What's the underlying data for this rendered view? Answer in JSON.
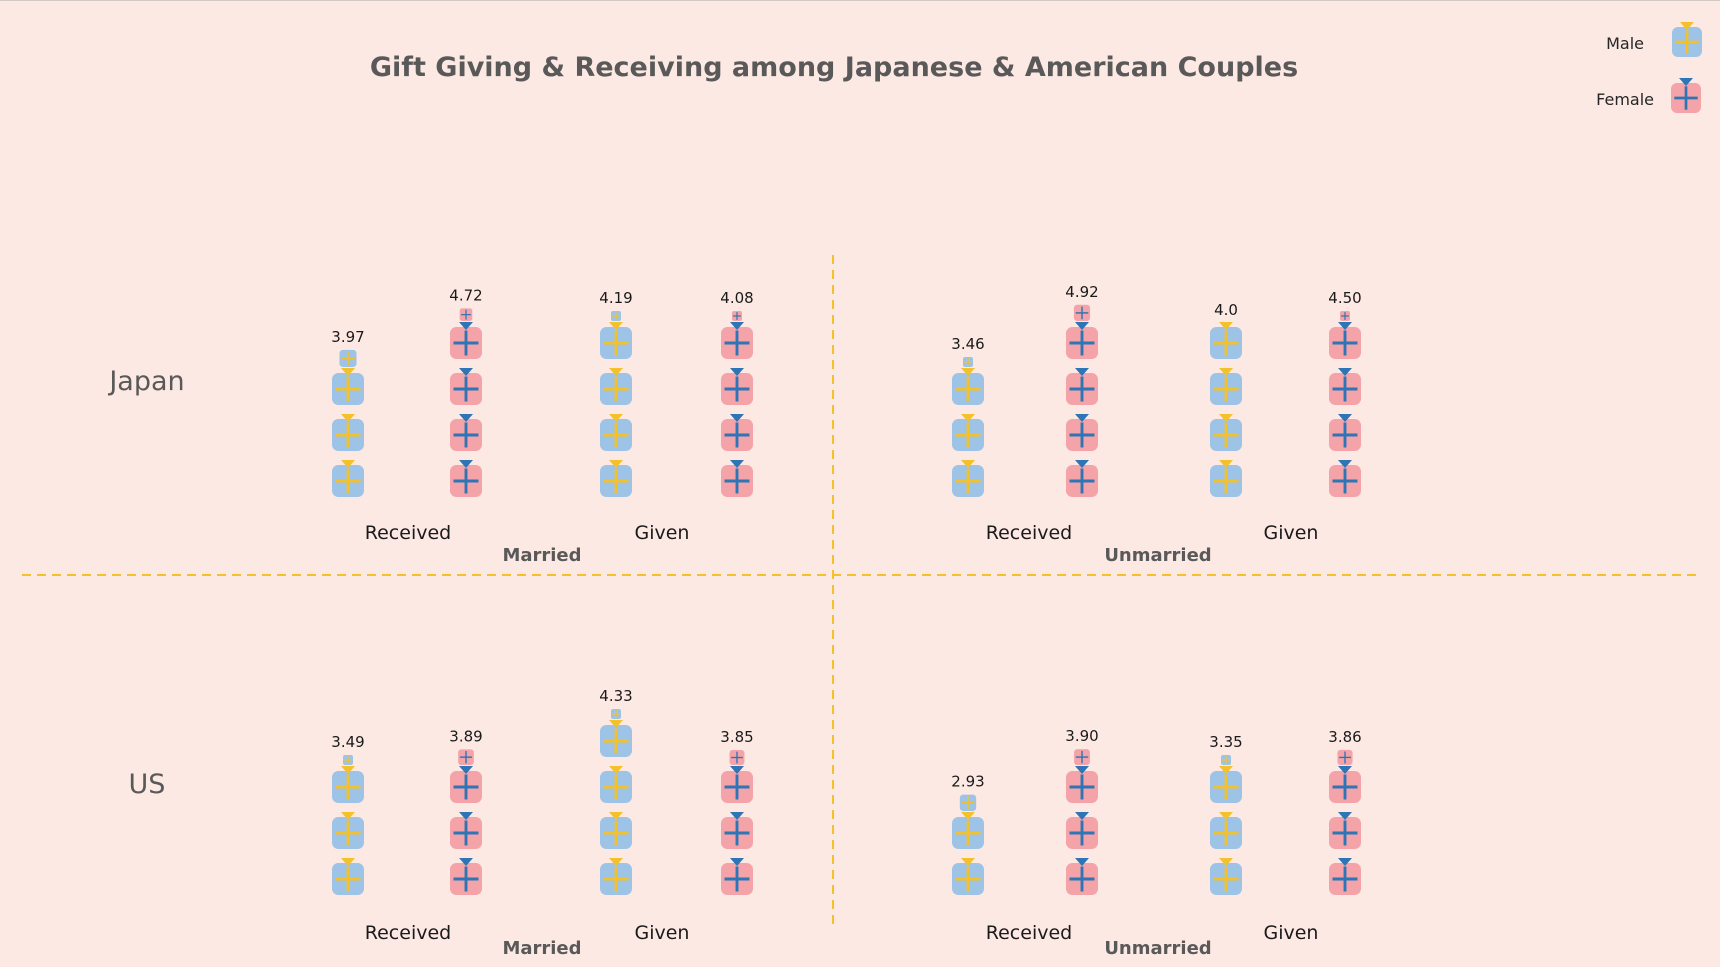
{
  "title": "Gift Giving & Receiving among Japanese & American Couples",
  "legend": {
    "male_label": "Male",
    "female_label": "Female"
  },
  "rows": [
    "Japan",
    "US"
  ],
  "colors": {
    "background": "#fde9e4",
    "male_box": "#9dc3e6",
    "male_ribbon": "#f3c12b",
    "female_box": "#f4a3a8",
    "female_ribbon": "#2e75b6",
    "divider": "#f7c02b",
    "title": "#595959"
  },
  "icons": {
    "male": "gift-box-icon",
    "female": "gift-box-icon"
  },
  "chart_data": {
    "type": "pictograph",
    "unit": "1 gift icon = 1 point",
    "title": "Gift Giving & Receiving among Japanese & American Couples",
    "series": [
      {
        "name": "Male"
      },
      {
        "name": "Female"
      }
    ],
    "panels": [
      {
        "country": "Japan",
        "status": "Married",
        "groups": [
          {
            "label": "Received",
            "male": 3.97,
            "female": 4.72,
            "male_label": "3.97",
            "female_label": "4.72"
          },
          {
            "label": "Given",
            "male": 4.19,
            "female": 4.08,
            "male_label": "4.19",
            "female_label": "4.08"
          }
        ]
      },
      {
        "country": "Japan",
        "status": "Unmarried",
        "groups": [
          {
            "label": "Received",
            "male": 3.46,
            "female": 4.92,
            "male_label": "3.46",
            "female_label": "4.92"
          },
          {
            "label": "Given",
            "male": 4.0,
            "female": 4.5,
            "male_label": "4.0",
            "female_label": "4.50"
          }
        ]
      },
      {
        "country": "US",
        "status": "Married",
        "groups": [
          {
            "label": "Received",
            "male": 3.49,
            "female": 3.89,
            "male_label": "3.49",
            "female_label": "3.89"
          },
          {
            "label": "Given",
            "male": 4.33,
            "female": 3.85,
            "male_label": "4.33",
            "female_label": "3.85"
          }
        ]
      },
      {
        "country": "US",
        "status": "Unmarried",
        "groups": [
          {
            "label": "Received",
            "male": 2.93,
            "female": 3.9,
            "male_label": "2.93",
            "female_label": "3.90"
          },
          {
            "label": "Given",
            "male": 3.35,
            "female": 3.86,
            "male_label": "3.35",
            "female_label": "3.86"
          }
        ]
      }
    ]
  }
}
